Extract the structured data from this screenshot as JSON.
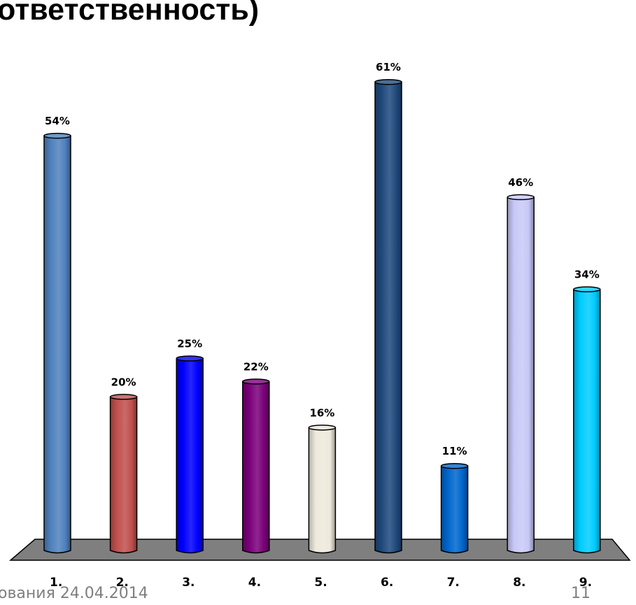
{
  "slide": {
    "title": "ответственность)",
    "footer": "ования 24.04.2014",
    "page_number": "11"
  },
  "chart_data": {
    "type": "bar",
    "categories": [
      "1.",
      "2.",
      "3.",
      "4.",
      "5.",
      "6.",
      "7.",
      "8.",
      "9."
    ],
    "values": [
      54,
      20,
      25,
      22,
      16,
      61,
      11,
      46,
      34
    ],
    "data_labels": [
      "54%",
      "20%",
      "25%",
      "22%",
      "16%",
      "61%",
      "11%",
      "46%",
      "34%"
    ],
    "unit": "%",
    "colors": [
      "#4f81bd",
      "#c0504d",
      "#0000ff",
      "#7b007b",
      "#ede9dc",
      "#1f497d",
      "#0066cc",
      "#c8c8f8",
      "#00ccff"
    ],
    "floor_color": "#7f7f7f",
    "title": "",
    "xlabel": "",
    "ylabel": "",
    "ylim": [
      0,
      65
    ],
    "grid": false,
    "legend": "none"
  }
}
